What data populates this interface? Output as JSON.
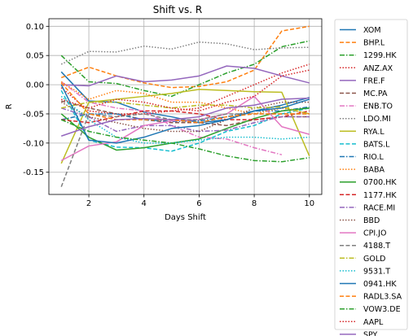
{
  "chart_data": {
    "type": "line",
    "title": "Shift vs. R",
    "xlabel": "Days Shift",
    "ylabel": "R",
    "xlim": [
      0.55,
      10.45
    ],
    "ylim": [
      -0.188,
      0.113
    ],
    "xticks": [
      2,
      4,
      6,
      8,
      10
    ],
    "yticks": [
      -0.15,
      -0.1,
      -0.05,
      0.0,
      0.05,
      0.1
    ],
    "grid": true,
    "legend_position": "outside-right",
    "x": [
      1,
      2,
      3,
      4,
      5,
      6,
      7,
      8,
      9,
      10
    ],
    "series": [
      {
        "name": "XOM",
        "color": "#1f77b4",
        "dash": "solid",
        "values": [
          0.022,
          -0.028,
          -0.03,
          -0.047,
          -0.055,
          -0.065,
          -0.06,
          -0.045,
          -0.035,
          -0.022
        ]
      },
      {
        "name": "BHP.L",
        "color": "#ff7f0e",
        "dash": "dashed",
        "values": [
          0.012,
          0.03,
          0.015,
          0.003,
          -0.005,
          -0.003,
          0.005,
          0.025,
          0.092,
          0.1
        ]
      },
      {
        "name": "1299.HK",
        "color": "#2ca02c",
        "dash": "dashdot",
        "values": [
          0.05,
          0.005,
          0.002,
          -0.01,
          -0.02,
          0.0,
          0.02,
          0.035,
          0.065,
          0.075
        ]
      },
      {
        "name": "ANZ.AX",
        "color": "#d62728",
        "dash": "dotted",
        "values": [
          -0.005,
          -0.045,
          -0.05,
          -0.05,
          -0.045,
          -0.04,
          -0.02,
          0.0,
          0.02,
          0.035
        ]
      },
      {
        "name": "FRE.F",
        "color": "#9467bd",
        "dash": "solid",
        "values": [
          0.0,
          -0.002,
          0.015,
          0.005,
          0.008,
          0.015,
          0.032,
          0.028,
          0.015,
          0.003
        ]
      },
      {
        "name": "MC.PA",
        "color": "#8c564b",
        "dash": "dashed",
        "values": [
          -0.028,
          -0.04,
          -0.05,
          -0.06,
          -0.065,
          -0.065,
          -0.07,
          -0.06,
          -0.055,
          -0.055
        ]
      },
      {
        "name": "ENB.TO",
        "color": "#e377c2",
        "dash": "dashdot",
        "values": [
          0.005,
          -0.03,
          -0.04,
          -0.045,
          -0.07,
          -0.09,
          -0.093,
          -0.108,
          -0.12,
          null
        ]
      },
      {
        "name": "LDO.MI",
        "color": "#7f7f7f",
        "dash": "dotted",
        "values": [
          0.035,
          0.057,
          0.056,
          0.066,
          0.061,
          0.073,
          0.07,
          0.06,
          0.063,
          0.064
        ]
      },
      {
        "name": "RYA.L",
        "color": "#bcbd22",
        "dash": "solid",
        "values": [
          -0.135,
          -0.03,
          -0.025,
          -0.02,
          -0.015,
          -0.008,
          -0.01,
          -0.012,
          -0.013,
          -0.122
        ]
      },
      {
        "name": "BATS.L",
        "color": "#17becf",
        "dash": "dashed",
        "values": [
          -0.01,
          -0.095,
          -0.107,
          -0.108,
          -0.114,
          -0.1,
          -0.08,
          -0.07,
          -0.05,
          -0.04
        ]
      },
      {
        "name": "RIO.L",
        "color": "#1f77b4",
        "dash": "dashdot",
        "values": [
          -0.06,
          -0.05,
          -0.05,
          -0.06,
          -0.063,
          -0.062,
          -0.055,
          -0.045,
          -0.045,
          -0.038
        ]
      },
      {
        "name": "BABA",
        "color": "#ff7f0e",
        "dash": "dotted",
        "values": [
          0.005,
          -0.025,
          -0.01,
          -0.015,
          -0.03,
          -0.03,
          -0.04,
          -0.05,
          -0.04,
          -0.05
        ]
      },
      {
        "name": "0700.HK",
        "color": "#2ca02c",
        "dash": "solid",
        "values": [
          -0.05,
          -0.09,
          -0.112,
          -0.108,
          -0.1,
          -0.093,
          -0.075,
          -0.058,
          -0.045,
          -0.04
        ]
      },
      {
        "name": "1177.HK",
        "color": "#d62728",
        "dash": "dashed",
        "values": [
          -0.06,
          -0.065,
          -0.055,
          -0.045,
          -0.045,
          -0.05,
          -0.06,
          -0.06,
          -0.055,
          -0.045
        ]
      },
      {
        "name": "RACE.MI",
        "color": "#9467bd",
        "dash": "dashdot",
        "values": [
          -0.04,
          -0.055,
          -0.08,
          -0.07,
          -0.07,
          -0.08,
          -0.078,
          -0.065,
          -0.055,
          -0.055
        ]
      },
      {
        "name": "BBD",
        "color": "#8c564b",
        "dash": "dotted",
        "values": [
          -0.03,
          -0.055,
          -0.065,
          -0.075,
          -0.08,
          -0.08,
          -0.06,
          -0.04,
          -0.03,
          -0.03
        ]
      },
      {
        "name": "CPI.JO",
        "color": "#e377c2",
        "dash": "solid",
        "values": [
          -0.13,
          -0.105,
          -0.098,
          -0.07,
          -0.062,
          -0.06,
          -0.05,
          -0.02,
          -0.072,
          -0.085
        ]
      },
      {
        "name": "4188.T",
        "color": "#7f7f7f",
        "dash": "dashed",
        "values": [
          -0.175,
          -0.05,
          -0.055,
          -0.05,
          -0.06,
          -0.06,
          -0.05,
          -0.05,
          -0.05,
          -0.05
        ]
      },
      {
        "name": "GOLD",
        "color": "#bcbd22",
        "dash": "dashdot",
        "values": [
          -0.04,
          -0.03,
          -0.03,
          -0.035,
          -0.04,
          -0.035,
          -0.035,
          -0.04,
          -0.038,
          -0.05
        ]
      },
      {
        "name": "9531.T",
        "color": "#17becf",
        "dash": "dotted",
        "values": [
          -0.02,
          -0.06,
          -0.09,
          -0.1,
          -0.1,
          -0.095,
          -0.09,
          -0.09,
          -0.093,
          -0.09
        ]
      },
      {
        "name": "0941.HK",
        "color": "#1f77b4",
        "dash": "solid",
        "values": [
          0.0,
          -0.095,
          -0.1,
          -0.09,
          -0.075,
          -0.07,
          -0.06,
          -0.045,
          -0.04,
          -0.025
        ]
      },
      {
        "name": "RADL3.SA",
        "color": "#ff7f0e",
        "dash": "dashed",
        "values": [
          0.003,
          -0.05,
          -0.06,
          -0.06,
          -0.06,
          -0.065,
          -0.055,
          -0.05,
          -0.05,
          -0.05
        ]
      },
      {
        "name": "VOW3.DE",
        "color": "#2ca02c",
        "dash": "dashdot",
        "values": [
          -0.06,
          -0.08,
          -0.09,
          -0.095,
          -0.1,
          -0.11,
          -0.122,
          -0.13,
          -0.132,
          -0.125
        ]
      },
      {
        "name": "AAPL",
        "color": "#d62728",
        "dash": "dotted",
        "values": [
          -0.025,
          -0.04,
          -0.025,
          -0.03,
          -0.04,
          -0.045,
          -0.03,
          -0.02,
          0.015,
          0.025
        ]
      },
      {
        "name": "SPY",
        "color": "#9467bd",
        "dash": "solid",
        "values": [
          -0.088,
          -0.072,
          -0.06,
          -0.058,
          -0.06,
          -0.055,
          -0.04,
          -0.035,
          -0.025,
          -0.023
        ]
      }
    ]
  }
}
